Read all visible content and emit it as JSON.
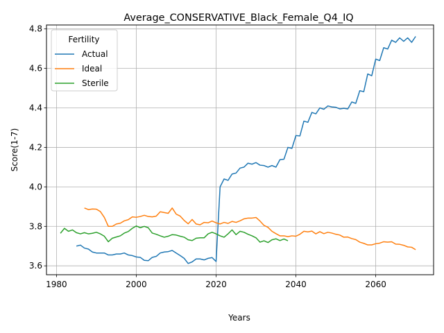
{
  "chart_data": {
    "type": "line",
    "title": "Average_CONSERVATIVE_Black_Female_Q4_IQ",
    "xlabel": "Years",
    "ylabel": "Score(1-7)",
    "xlim": [
      1977.5,
      2074.5
    ],
    "ylim": [
      3.555,
      4.82
    ],
    "xticks": [
      1980,
      2000,
      2020,
      2040,
      2060
    ],
    "yticks": [
      3.6,
      3.8,
      4.0,
      4.2,
      4.4,
      4.6,
      4.8
    ],
    "grid": true,
    "legend": {
      "title": "Fertility",
      "placement": "top-left"
    },
    "series": [
      {
        "name": "Actual",
        "color": "#1f77b4",
        "x": [
          1985,
          1986,
          1987,
          1988,
          1989,
          1990,
          1991,
          1992,
          1993,
          1994,
          1995,
          1996,
          1997,
          1998,
          1999,
          2000,
          2001,
          2002,
          2003,
          2004,
          2005,
          2006,
          2007,
          2008,
          2009,
          2010,
          2011,
          2012,
          2013,
          2014,
          2015,
          2016,
          2017,
          2018,
          2019,
          2020,
          2021,
          2022,
          2023,
          2024,
          2025,
          2026,
          2027,
          2028,
          2029,
          2030,
          2031,
          2032,
          2033,
          2034,
          2035,
          2036,
          2037,
          2038,
          2039,
          2040,
          2041,
          2042,
          2043,
          2044,
          2045,
          2046,
          2047,
          2048,
          2049,
          2050,
          2051,
          2052,
          2053,
          2054,
          2055,
          2056,
          2057,
          2058,
          2059,
          2060,
          2061,
          2062,
          2063,
          2064,
          2065,
          2066,
          2067,
          2068,
          2069,
          2070
        ],
        "values": [
          3.7,
          3.705,
          3.69,
          3.685,
          3.67,
          3.665,
          3.665,
          3.665,
          3.655,
          3.655,
          3.66,
          3.66,
          3.665,
          3.655,
          3.652,
          3.645,
          3.643,
          3.628,
          3.626,
          3.643,
          3.648,
          3.665,
          3.67,
          3.672,
          3.678,
          3.665,
          3.652,
          3.638,
          3.612,
          3.62,
          3.635,
          3.635,
          3.63,
          3.638,
          3.642,
          3.622,
          4.0,
          4.04,
          4.033,
          4.065,
          4.07,
          4.095,
          4.1,
          4.12,
          4.115,
          4.123,
          4.11,
          4.108,
          4.1,
          4.108,
          4.1,
          4.138,
          4.14,
          4.2,
          4.195,
          4.26,
          4.258,
          4.333,
          4.327,
          4.377,
          4.37,
          4.4,
          4.393,
          4.41,
          4.405,
          4.403,
          4.395,
          4.398,
          4.395,
          4.43,
          4.423,
          4.487,
          4.482,
          4.572,
          4.563,
          4.647,
          4.64,
          4.705,
          4.698,
          4.743,
          4.732,
          4.755,
          4.737,
          4.755,
          4.732,
          4.762
        ]
      },
      {
        "name": "Ideal",
        "color": "#ff7f0e",
        "x": [
          1987,
          1988,
          1989,
          1990,
          1991,
          1992,
          1993,
          1994,
          1995,
          1996,
          1997,
          1998,
          1999,
          2000,
          2001,
          2002,
          2003,
          2004,
          2005,
          2006,
          2007,
          2008,
          2009,
          2010,
          2011,
          2012,
          2013,
          2014,
          2015,
          2016,
          2017,
          2018,
          2019,
          2020,
          2021,
          2022,
          2023,
          2024,
          2025,
          2026,
          2027,
          2028,
          2029,
          2030,
          2031,
          2032,
          2033,
          2034,
          2035,
          2036,
          2037,
          2038,
          2039,
          2040,
          2041,
          2042,
          2043,
          2044,
          2045,
          2046,
          2047,
          2048,
          2049,
          2050,
          2051,
          2052,
          2053,
          2054,
          2055,
          2056,
          2057,
          2058,
          2059,
          2060,
          2061,
          2062,
          2063,
          2064,
          2065,
          2066,
          2067,
          2068,
          2069,
          2070
        ],
        "values": [
          3.893,
          3.885,
          3.888,
          3.887,
          3.875,
          3.845,
          3.8,
          3.8,
          3.812,
          3.816,
          3.828,
          3.834,
          3.848,
          3.846,
          3.85,
          3.856,
          3.85,
          3.848,
          3.852,
          3.874,
          3.87,
          3.866,
          3.893,
          3.862,
          3.852,
          3.83,
          3.813,
          3.835,
          3.812,
          3.808,
          3.82,
          3.818,
          3.827,
          3.818,
          3.812,
          3.82,
          3.815,
          3.825,
          3.82,
          3.828,
          3.838,
          3.842,
          3.842,
          3.845,
          3.827,
          3.805,
          3.795,
          3.775,
          3.763,
          3.752,
          3.752,
          3.748,
          3.752,
          3.75,
          3.76,
          3.775,
          3.772,
          3.776,
          3.762,
          3.773,
          3.763,
          3.77,
          3.766,
          3.76,
          3.756,
          3.745,
          3.746,
          3.738,
          3.733,
          3.72,
          3.714,
          3.706,
          3.706,
          3.712,
          3.715,
          3.722,
          3.72,
          3.722,
          3.71,
          3.709,
          3.704,
          3.696,
          3.694,
          3.682
        ]
      },
      {
        "name": "Sterile",
        "color": "#2ca02c",
        "x": [
          1981,
          1982,
          1983,
          1984,
          1985,
          1986,
          1987,
          1988,
          1989,
          1990,
          1991,
          1992,
          1993,
          1994,
          1995,
          1996,
          1997,
          1998,
          1999,
          2000,
          2001,
          2002,
          2003,
          2004,
          2005,
          2006,
          2007,
          2008,
          2009,
          2010,
          2011,
          2012,
          2013,
          2014,
          2015,
          2016,
          2017,
          2018,
          2019,
          2020,
          2021,
          2022,
          2023,
          2024,
          2025,
          2026,
          2027,
          2028,
          2029,
          2030,
          2031,
          2032,
          2033,
          2034,
          2035,
          2036,
          2037,
          2038
        ],
        "values": [
          3.765,
          3.79,
          3.775,
          3.782,
          3.768,
          3.762,
          3.768,
          3.762,
          3.765,
          3.77,
          3.762,
          3.75,
          3.722,
          3.74,
          3.746,
          3.752,
          3.766,
          3.774,
          3.79,
          3.802,
          3.793,
          3.8,
          3.793,
          3.766,
          3.76,
          3.752,
          3.745,
          3.75,
          3.758,
          3.756,
          3.75,
          3.745,
          3.732,
          3.728,
          3.74,
          3.742,
          3.742,
          3.762,
          3.77,
          3.762,
          3.752,
          3.745,
          3.762,
          3.782,
          3.758,
          3.775,
          3.77,
          3.76,
          3.752,
          3.742,
          3.72,
          3.727,
          3.718,
          3.732,
          3.737,
          3.728,
          3.736,
          3.727
        ]
      }
    ]
  }
}
